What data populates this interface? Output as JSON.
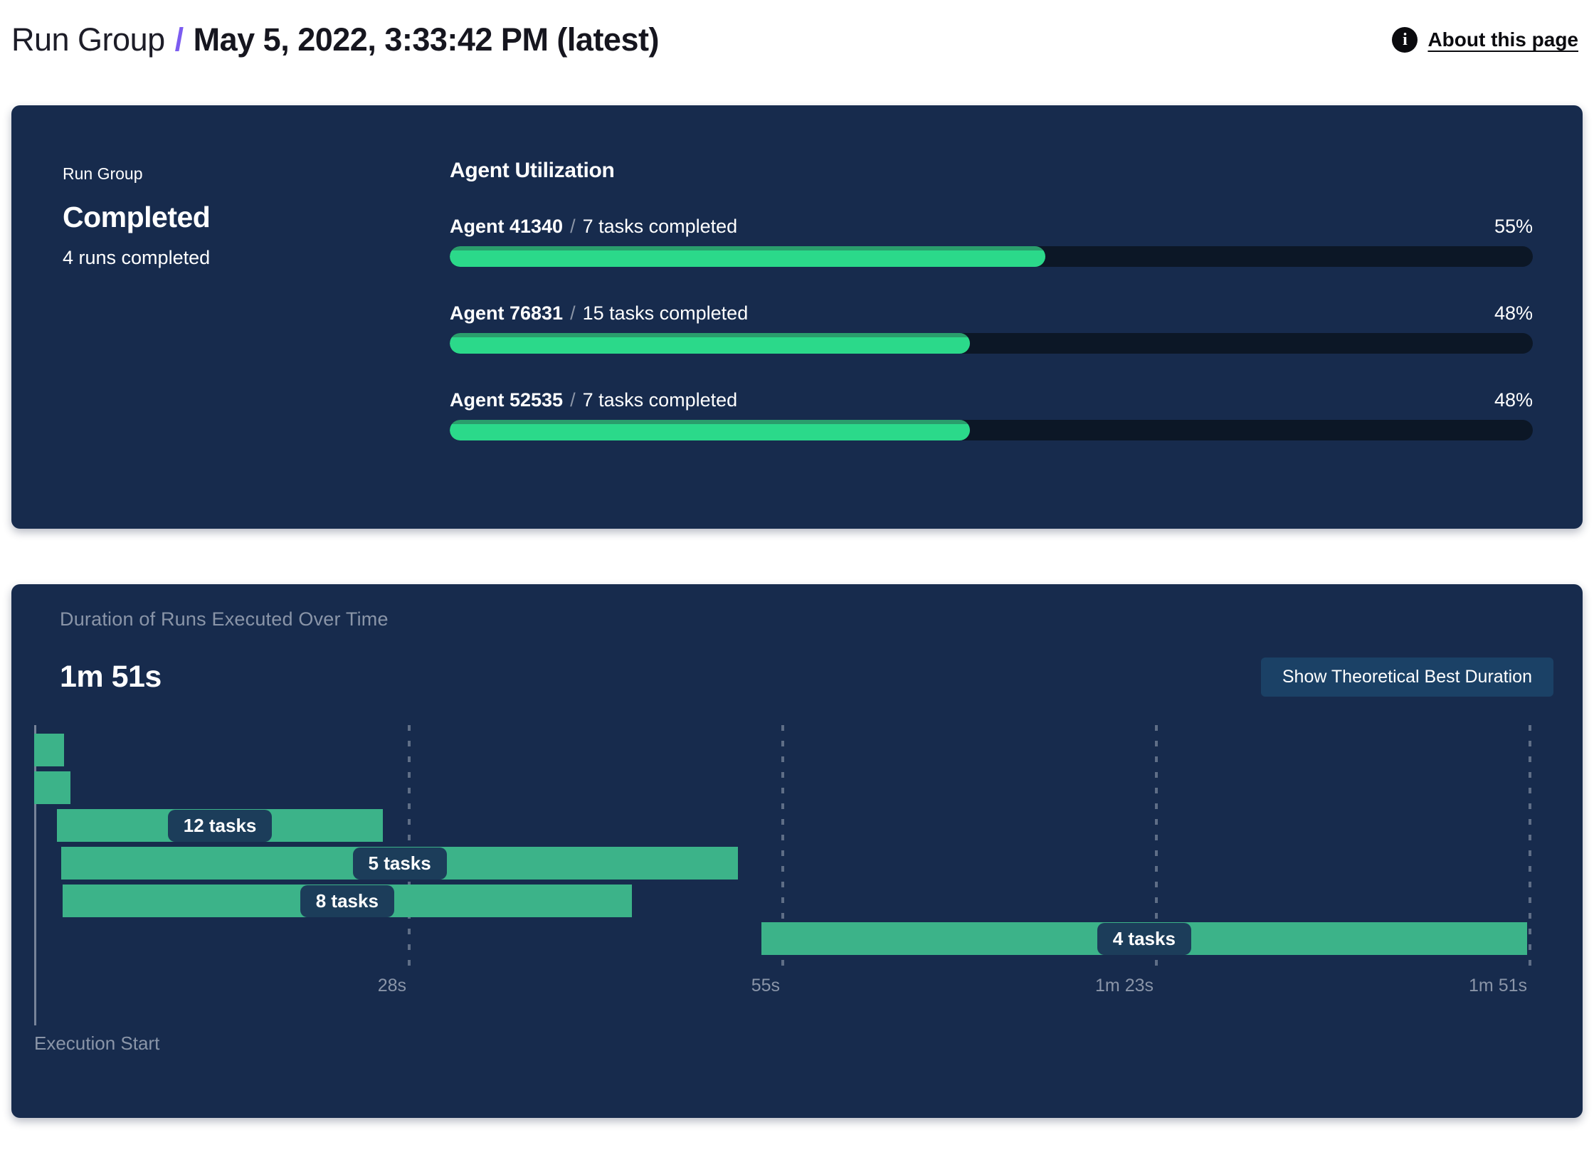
{
  "header": {
    "breadcrumb_root": "Run Group",
    "breadcrumb_separator": "/",
    "breadcrumb_current": "May 5, 2022, 3:33:42 PM (latest)",
    "about_link": "About this page",
    "info_icon_glyph": "i",
    "accent_color": "#7C5CF0"
  },
  "summary_panel": {
    "label": "Run Group",
    "status": "Completed",
    "runs_completed": "4 runs completed",
    "section_title": "Agent Utilization",
    "separator": "/",
    "agents": [
      {
        "name": "Agent 41340",
        "tasks": "7 tasks completed",
        "pct": 55,
        "pct_label": "55%"
      },
      {
        "name": "Agent 76831",
        "tasks": "15 tasks completed",
        "pct": 48,
        "pct_label": "48%"
      },
      {
        "name": "Agent 52535",
        "tasks": "7 tasks completed",
        "pct": 48,
        "pct_label": "48%"
      }
    ]
  },
  "duration_panel": {
    "title": "Duration of Runs Executed Over Time",
    "total_duration": "1m 51s",
    "button_label": "Show Theoretical Best Duration",
    "axis_caption": "Execution Start"
  },
  "chart_data": {
    "type": "gantt",
    "title": "Duration of Runs Executed Over Time",
    "total_duration_label": "1m 51s",
    "time_axis_seconds": [
      0,
      111
    ],
    "xlabel": "Execution Start",
    "grid": "dashed-vertical",
    "ticks": [
      {
        "label": "28s",
        "seconds": 27.75
      },
      {
        "label": "55s",
        "seconds": 55.5
      },
      {
        "label": "1m 23s",
        "seconds": 83.25
      },
      {
        "label": "1m 51s",
        "seconds": 111
      }
    ],
    "bars": [
      {
        "row": 1,
        "start_s": 0,
        "end_s": 2.2,
        "label": ""
      },
      {
        "row": 2,
        "start_s": 0,
        "end_s": 2.7,
        "label": ""
      },
      {
        "row": 3,
        "start_s": 1.7,
        "end_s": 25.9,
        "label": "12 tasks"
      },
      {
        "row": 4,
        "start_s": 2.0,
        "end_s": 52.3,
        "label": "5 tasks"
      },
      {
        "row": 5,
        "start_s": 2.1,
        "end_s": 44.4,
        "label": "8 tasks"
      },
      {
        "row": 6,
        "start_s": 54.0,
        "end_s": 110.9,
        "label": "4 tasks"
      }
    ],
    "colors": {
      "bar": "#3CB389",
      "chip": "#1C3D5A",
      "panel_bg": "#172B4D",
      "progress_track": "#0C1726",
      "progress_fill": "#2BD98A",
      "muted_text": "#8A95A8",
      "button_bg": "#1B4166"
    }
  }
}
